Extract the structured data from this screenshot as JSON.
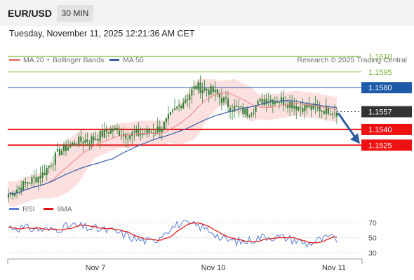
{
  "header": {
    "symbol": "EUR/USD",
    "timeframe": "30 MIN",
    "datetime": "Tuesday, November 11, 2025 12:21:36 AM CET"
  },
  "legend": {
    "ma20_label": "MA 20 + Bollinger Bands",
    "ma50_label": "MA 50",
    "credit": "Research © 2025 Trading Central"
  },
  "colors": {
    "ma20": "#f08080",
    "ma50": "#3a5ea8",
    "bollinger_fill": "#fbd3d3",
    "candle": "#2e7d32",
    "green_level": "#8bc34a",
    "red_level": "#ee1111",
    "blue_level": "#1e5aa8",
    "arrow": "#2a5d9f",
    "rsi": "#5b7ed6",
    "rsi_ma": "#e01010"
  },
  "chart_data": [
    {
      "type": "candlestick",
      "title": "EUR/USD",
      "timeframe": "30 MIN",
      "ylim": [
        1.1475,
        1.1625
      ],
      "x_ticks": [
        "Nov 7",
        "Nov 10",
        "Nov 11"
      ],
      "n_bars": 155,
      "close_anchors": [
        [
          0,
          1.1478
        ],
        [
          8,
          1.1488
        ],
        [
          16,
          1.1497
        ],
        [
          24,
          1.1519
        ],
        [
          32,
          1.1528
        ],
        [
          40,
          1.1531
        ],
        [
          48,
          1.154
        ],
        [
          56,
          1.1535
        ],
        [
          64,
          1.1536
        ],
        [
          72,
          1.1542
        ],
        [
          80,
          1.1563
        ],
        [
          88,
          1.1581
        ],
        [
          96,
          1.1576
        ],
        [
          104,
          1.1562
        ],
        [
          112,
          1.1556
        ],
        [
          120,
          1.1569
        ],
        [
          128,
          1.1568
        ],
        [
          136,
          1.1562
        ],
        [
          144,
          1.156
        ],
        [
          150,
          1.1559
        ],
        [
          154,
          1.1557
        ]
      ],
      "levels": [
        {
          "kind": "resistance",
          "value": 1.161,
          "label": "1.1610"
        },
        {
          "kind": "resistance",
          "value": 1.1595,
          "label": "1.1595"
        },
        {
          "kind": "pivot",
          "value": 1.158,
          "label": "1.1580"
        },
        {
          "kind": "last",
          "value": 1.1557,
          "label": "1.1557"
        },
        {
          "kind": "support",
          "value": 1.154,
          "label": "1.1540"
        },
        {
          "kind": "support",
          "value": 1.1525,
          "label": "1.1525"
        }
      ],
      "forecast_arrow": {
        "from": 1.1557,
        "to": 1.1525,
        "direction": "down"
      },
      "series": [
        {
          "name": "MA 20 + Bollinger Bands"
        },
        {
          "name": "MA 50"
        }
      ]
    },
    {
      "type": "line",
      "ylim": [
        20,
        80
      ],
      "y_ticks": [
        70,
        50,
        30
      ],
      "rsi_anchors": [
        [
          0,
          64
        ],
        [
          10,
          62
        ],
        [
          20,
          60
        ],
        [
          30,
          66
        ],
        [
          40,
          62
        ],
        [
          50,
          58
        ],
        [
          60,
          48
        ],
        [
          68,
          44
        ],
        [
          74,
          60
        ],
        [
          80,
          68
        ],
        [
          88,
          66
        ],
        [
          96,
          58
        ],
        [
          100,
          48
        ],
        [
          110,
          44
        ],
        [
          120,
          52
        ],
        [
          130,
          50
        ],
        [
          140,
          42
        ],
        [
          150,
          50
        ],
        [
          154,
          48
        ]
      ],
      "series": [
        {
          "name": "RSI"
        },
        {
          "name": "9MA"
        }
      ]
    }
  ]
}
